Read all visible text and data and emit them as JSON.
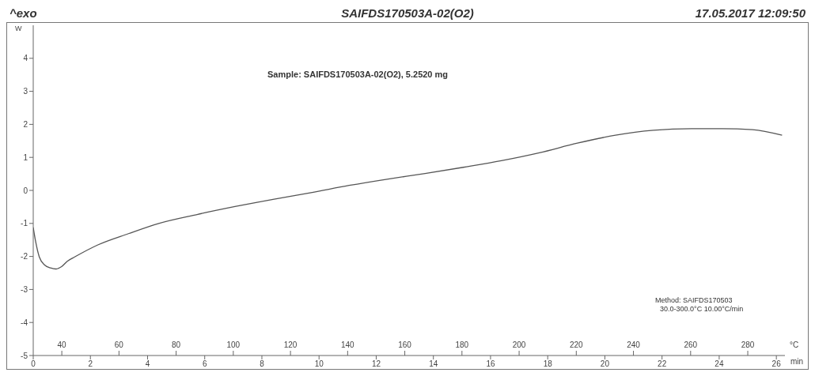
{
  "chart_data": {
    "type": "line",
    "title": "SAIFDS170503A-02(O2)",
    "xlabel": "min",
    "ylabel": "W",
    "x2label": "°C",
    "annotations": [
      "^exo",
      "17.05.2017 12:09:50",
      "Sample: SAIFDS170503A-02(O2), 5.2520 mg",
      "Method: SAIFDS170503",
      "30.0-300.0°C 10.00°C/min"
    ],
    "x": [
      0,
      0.08,
      0.21,
      0.4,
      0.61,
      0.8,
      0.99,
      1.2,
      1.46,
      2.26,
      3.33,
      4.39,
      5.73,
      7.06,
      8.39,
      9.72,
      11.05,
      12.38,
      13.71,
      15.05,
      16.38,
      17.71,
      19.04,
      20.37,
      21.7,
      23.04,
      24.1,
      25.17,
      26.2
    ],
    "series": [
      {
        "color": "#555555",
        "values": [
          -1.12,
          -1.53,
          -2.01,
          -2.26,
          -2.35,
          -2.38,
          -2.31,
          -2.14,
          -2.01,
          -1.65,
          -1.31,
          -1.0,
          -0.73,
          -0.49,
          -0.27,
          -0.07,
          0.15,
          0.34,
          0.51,
          0.7,
          0.9,
          1.14,
          1.43,
          1.67,
          1.82,
          1.87,
          1.87,
          1.84,
          1.67
        ]
      }
    ],
    "xlim": [
      0,
      26.3
    ],
    "xticks": [
      0,
      2,
      4,
      6,
      8,
      10,
      12,
      14,
      16,
      18,
      20,
      22,
      24,
      26
    ],
    "x2lim": [
      30,
      293
    ],
    "x2ticks": [
      40,
      60,
      80,
      100,
      120,
      140,
      160,
      180,
      200,
      220,
      240,
      260,
      280
    ],
    "ylim": [
      -5,
      5
    ],
    "yticks": [
      -5,
      -4,
      -3,
      -2,
      -1,
      0,
      1,
      2,
      3,
      4
    ],
    "marker": "none",
    "line_style": "solid"
  }
}
